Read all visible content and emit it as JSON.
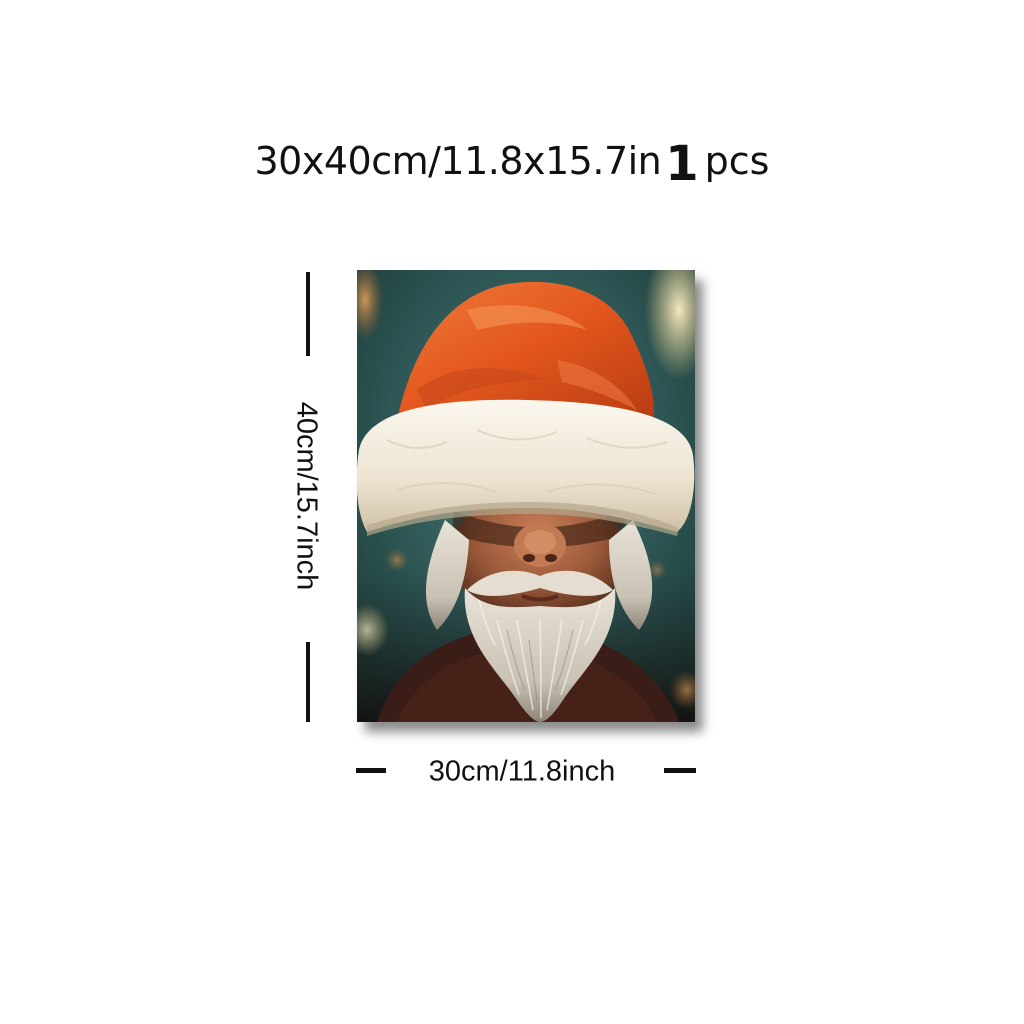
{
  "title": {
    "size_text": "30x40cm/11.8x15.7in",
    "quantity_number": "1",
    "quantity_unit": "pcs"
  },
  "dimensions": {
    "height_label": "40cm/15.7inch",
    "width_label": "30cm/11.8inch"
  },
  "artwork": {
    "subject": "Santa Claus portrait with red hat covering eyes",
    "colors": {
      "background_teal": "#2f5a5a",
      "hat_red": "#e0561e",
      "fur_cream": "#f2ece0",
      "skin": "#b06a45",
      "beard": "#d8d2c6"
    }
  }
}
